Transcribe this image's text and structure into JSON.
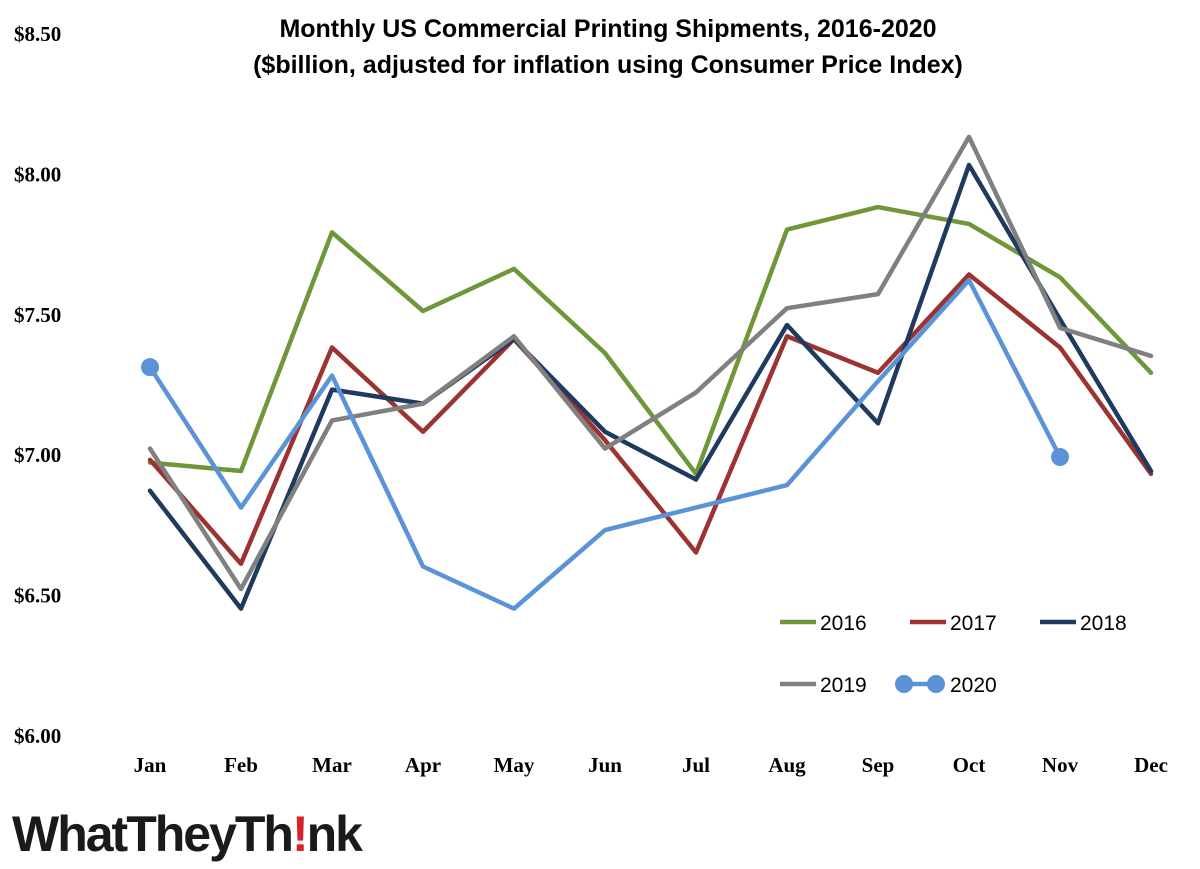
{
  "chart_data": {
    "type": "line",
    "title": "Monthly US Commercial Printing Shipments, 2016-2020",
    "subtitle": "($billion, adjusted for inflation using Consumer Price Index)",
    "categories": [
      "Jan",
      "Feb",
      "Mar",
      "Apr",
      "May",
      "Jun",
      "Jul",
      "Aug",
      "Sep",
      "Oct",
      "Nov",
      "Dec"
    ],
    "ylim": [
      6.0,
      8.5
    ],
    "yticks": [
      6.0,
      6.5,
      7.0,
      7.5,
      8.0,
      8.5
    ],
    "ytick_labels": [
      "$6.00",
      "$6.50",
      "$7.00",
      "$7.50",
      "$8.00",
      "$8.50"
    ],
    "grid": false,
    "legend": "bottom-right",
    "series": [
      {
        "name": "2016",
        "color": "#70963a",
        "markers": false,
        "values": [
          6.97,
          6.94,
          7.79,
          7.51,
          7.66,
          7.36,
          6.93,
          7.8,
          7.88,
          7.82,
          7.63,
          7.29
        ]
      },
      {
        "name": "2017",
        "color": "#9c3330",
        "markers": false,
        "values": [
          6.98,
          6.61,
          7.38,
          7.08,
          7.41,
          7.05,
          6.65,
          7.42,
          7.29,
          7.64,
          7.38,
          6.93
        ]
      },
      {
        "name": "2018",
        "color": "#1f3a5f",
        "markers": false,
        "values": [
          6.87,
          6.45,
          7.23,
          7.18,
          7.41,
          7.08,
          6.91,
          7.46,
          7.11,
          8.03,
          7.48,
          6.94
        ]
      },
      {
        "name": "2019",
        "color": "#808080",
        "markers": false,
        "values": [
          7.02,
          6.52,
          7.12,
          7.18,
          7.42,
          7.02,
          7.22,
          7.52,
          7.57,
          8.13,
          7.45,
          7.35
        ]
      },
      {
        "name": "2020",
        "color": "#5b93d8",
        "markers": true,
        "values": [
          7.31,
          6.81,
          7.28,
          6.6,
          6.45,
          6.73,
          6.81,
          6.89,
          7.26,
          7.62,
          6.99,
          null
        ]
      }
    ]
  },
  "logo": {
    "part1": "WhatTheyTh",
    "bang": "!",
    "part2": "nk"
  }
}
